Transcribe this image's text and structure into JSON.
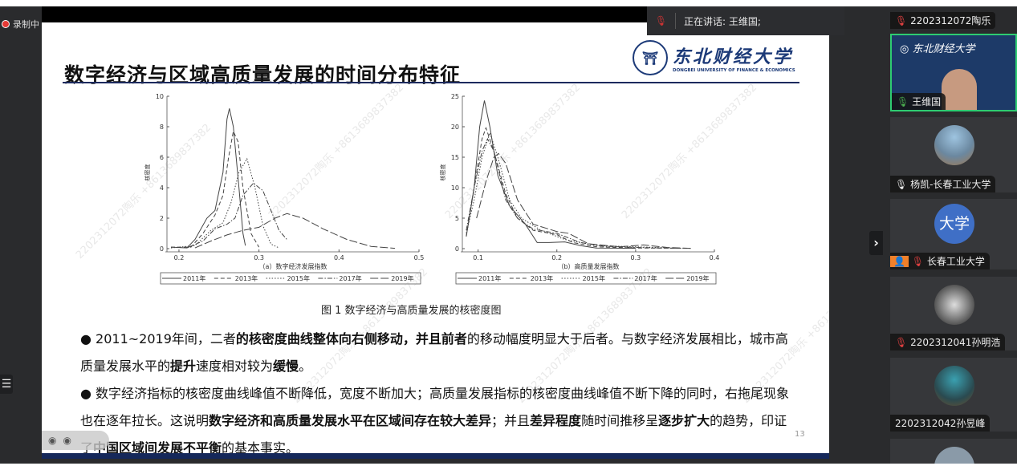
{
  "recording": {
    "label": "录制中"
  },
  "speaking": {
    "label": "正在讲话:  王维国;"
  },
  "slide": {
    "title": "数字经济与区域高质量发展的时间分布特征",
    "logo": {
      "cn": "东北财经大学",
      "en": "DONGBEI UNIVERSITY OF FINANCE & ECONOMICS"
    },
    "figure_caption": "图 1  数字经济与高质量发展的核密度图",
    "bullet1_parts": [
      "2011~2019年间，二者",
      "的核密度曲线整体向右侧移动，并且前者",
      "的移动幅度明显大于后者。与数字经济发展相比，城市高质量发展水平的",
      "提升",
      "速度相对较为",
      "缓慢",
      "。"
    ],
    "bullet2_parts": [
      "数字经济指标的核密度曲线峰值不断降低，宽度不断加大；高质量发展指标的核密度曲线峰值不断下降的同时，右拖尾现象也在逐年拉长。这说明",
      "数字经济和高质量发展水平在区域间存在较大差异",
      "；并且",
      "差异程度",
      "随时间推移呈",
      "逐步扩大",
      "的趋势，印证了",
      "中国区域间发展不平衡",
      "的基本事实。"
    ],
    "page_number": "13",
    "watermark": "2202312072陶乐 +8613689837382"
  },
  "chart_data": [
    {
      "type": "line",
      "xlabel": "（a）数字经济发展指数",
      "ylabel": "核密度",
      "xlim": [
        0.185,
        0.5
      ],
      "ylim": [
        0,
        10
      ],
      "xticks": [
        "0.2",
        "0.3",
        "0.4",
        "0.5"
      ],
      "xtick_values": [
        0.2,
        0.3,
        0.4,
        0.5
      ],
      "yticks": [
        "0",
        "2",
        "4",
        "6",
        "8",
        "10"
      ],
      "ytick_values": [
        0,
        2,
        4,
        6,
        8,
        10
      ],
      "legend_position": "bottom",
      "series": [
        {
          "name": "2011年",
          "style": "solid",
          "points": [
            [
              0.19,
              0.1
            ],
            [
              0.21,
              0.05
            ],
            [
              0.22,
              0.6
            ],
            [
              0.235,
              2
            ],
            [
              0.245,
              2.5
            ],
            [
              0.255,
              5
            ],
            [
              0.26,
              8.5
            ],
            [
              0.263,
              9.2
            ],
            [
              0.268,
              8
            ],
            [
              0.275,
              4
            ],
            [
              0.28,
              1
            ],
            [
              0.283,
              0.2
            ]
          ]
        },
        {
          "name": "2013年",
          "style": "dash",
          "points": [
            [
              0.19,
              0.1
            ],
            [
              0.215,
              0.1
            ],
            [
              0.23,
              1
            ],
            [
              0.245,
              2.2
            ],
            [
              0.255,
              3.5
            ],
            [
              0.262,
              6
            ],
            [
              0.268,
              7.7
            ],
            [
              0.274,
              7
            ],
            [
              0.28,
              4
            ],
            [
              0.29,
              1
            ],
            [
              0.3,
              0.1
            ]
          ]
        },
        {
          "name": "2015年",
          "style": "dot",
          "points": [
            [
              0.19,
              0.05
            ],
            [
              0.22,
              0.2
            ],
            [
              0.24,
              1.2
            ],
            [
              0.255,
              1.7
            ],
            [
              0.265,
              3
            ],
            [
              0.275,
              5
            ],
            [
              0.285,
              5.9
            ],
            [
              0.295,
              4
            ],
            [
              0.305,
              1.5
            ],
            [
              0.315,
              0.3
            ],
            [
              0.325,
              0.05
            ]
          ]
        },
        {
          "name": "2017年",
          "style": "dashdot",
          "points": [
            [
              0.21,
              0.05
            ],
            [
              0.23,
              0.5
            ],
            [
              0.245,
              1.3
            ],
            [
              0.26,
              1.6
            ],
            [
              0.27,
              2
            ],
            [
              0.28,
              3.5
            ],
            [
              0.293,
              4.3
            ],
            [
              0.305,
              3.8
            ],
            [
              0.315,
              2.5
            ],
            [
              0.325,
              1.2
            ],
            [
              0.335,
              0.6
            ]
          ]
        },
        {
          "name": "2019年",
          "style": "longdash",
          "points": [
            [
              0.22,
              0.05
            ],
            [
              0.24,
              0.5
            ],
            [
              0.26,
              0.9
            ],
            [
              0.28,
              1.2
            ],
            [
              0.3,
              1.4
            ],
            [
              0.32,
              2
            ],
            [
              0.335,
              2.3
            ],
            [
              0.355,
              2
            ],
            [
              0.38,
              1.3
            ],
            [
              0.41,
              0.6
            ],
            [
              0.44,
              0.15
            ],
            [
              0.47,
              0.02
            ]
          ]
        }
      ]
    },
    {
      "type": "line",
      "xlabel": "（b）高质量发展指数",
      "ylabel": "核密度",
      "xlim": [
        0.08,
        0.4
      ],
      "ylim": [
        0,
        25
      ],
      "xticks": [
        "0.1",
        "0.2",
        "0.3",
        "0.4"
      ],
      "xtick_values": [
        0.1,
        0.2,
        0.3,
        0.4
      ],
      "yticks": [
        "0",
        "5",
        "10",
        "15",
        "20",
        "25"
      ],
      "ytick_values": [
        0,
        5,
        10,
        15,
        20,
        25
      ],
      "legend_position": "bottom",
      "series": [
        {
          "name": "2011年",
          "style": "solid",
          "points": [
            [
              0.085,
              2
            ],
            [
              0.095,
              10
            ],
            [
              0.102,
              20
            ],
            [
              0.108,
              24.3
            ],
            [
              0.115,
              20
            ],
            [
              0.125,
              12
            ],
            [
              0.14,
              7
            ],
            [
              0.16,
              4
            ],
            [
              0.175,
              1
            ],
            [
              0.19,
              1
            ],
            [
              0.21,
              1.1
            ],
            [
              0.23,
              0.5
            ],
            [
              0.25,
              0.1
            ],
            [
              0.3,
              0.05
            ]
          ]
        },
        {
          "name": "2013年",
          "style": "dash",
          "points": [
            [
              0.085,
              2
            ],
            [
              0.095,
              10
            ],
            [
              0.105,
              18
            ],
            [
              0.11,
              19.8
            ],
            [
              0.12,
              16
            ],
            [
              0.135,
              9
            ],
            [
              0.15,
              5
            ],
            [
              0.17,
              3
            ],
            [
              0.2,
              2.3
            ],
            [
              0.22,
              1
            ],
            [
              0.25,
              0.3
            ],
            [
              0.3,
              0.1
            ],
            [
              0.37,
              0.05
            ]
          ]
        },
        {
          "name": "2015年",
          "style": "dot",
          "points": [
            [
              0.085,
              2.5
            ],
            [
              0.095,
              8
            ],
            [
              0.105,
              15
            ],
            [
              0.115,
              19
            ],
            [
              0.125,
              15
            ],
            [
              0.14,
              8
            ],
            [
              0.155,
              5
            ],
            [
              0.18,
              3
            ],
            [
              0.21,
              1.5
            ],
            [
              0.25,
              0.5
            ],
            [
              0.3,
              0.3
            ],
            [
              0.36,
              0.05
            ]
          ]
        },
        {
          "name": "2017年",
          "style": "dashdot",
          "points": [
            [
              0.085,
              3
            ],
            [
              0.095,
              10
            ],
            [
              0.105,
              16
            ],
            [
              0.112,
              18
            ],
            [
              0.12,
              16
            ],
            [
              0.135,
              8
            ],
            [
              0.15,
              5
            ],
            [
              0.17,
              3.2
            ],
            [
              0.2,
              2.5
            ],
            [
              0.23,
              1
            ],
            [
              0.26,
              0.4
            ],
            [
              0.3,
              0.2
            ],
            [
              0.36,
              0.05
            ]
          ]
        },
        {
          "name": "2019年",
          "style": "longdash",
          "points": [
            [
              0.098,
              5
            ],
            [
              0.11,
              11
            ],
            [
              0.12,
              15
            ],
            [
              0.126,
              15.6
            ],
            [
              0.135,
              14
            ],
            [
              0.15,
              8
            ],
            [
              0.17,
              4
            ],
            [
              0.2,
              2.8
            ],
            [
              0.215,
              2.5
            ],
            [
              0.24,
              0.8
            ],
            [
              0.28,
              0.3
            ],
            [
              0.31,
              0.6
            ],
            [
              0.34,
              0.2
            ],
            [
              0.37,
              0.05
            ]
          ]
        }
      ]
    }
  ],
  "participants": {
    "top_label": "2202312072陶乐",
    "tiles": [
      {
        "name": "王维国",
        "mic": "active",
        "logo": "东北财经大学"
      },
      {
        "name": "杨凯-长春工业大学",
        "mic": "on"
      },
      {
        "name": "长春工业大学",
        "mic": "muted",
        "avatar_text": "大学",
        "avatar_color": "#3f6fc6"
      },
      {
        "name": "2202312041孙明浩",
        "mic": "muted"
      },
      {
        "name": "2202312042孙昱峰",
        "mic": "none"
      }
    ]
  },
  "colors": {
    "accent_green": "#2ecc71",
    "navy": "#15285a",
    "muted_red": "#e04040"
  }
}
